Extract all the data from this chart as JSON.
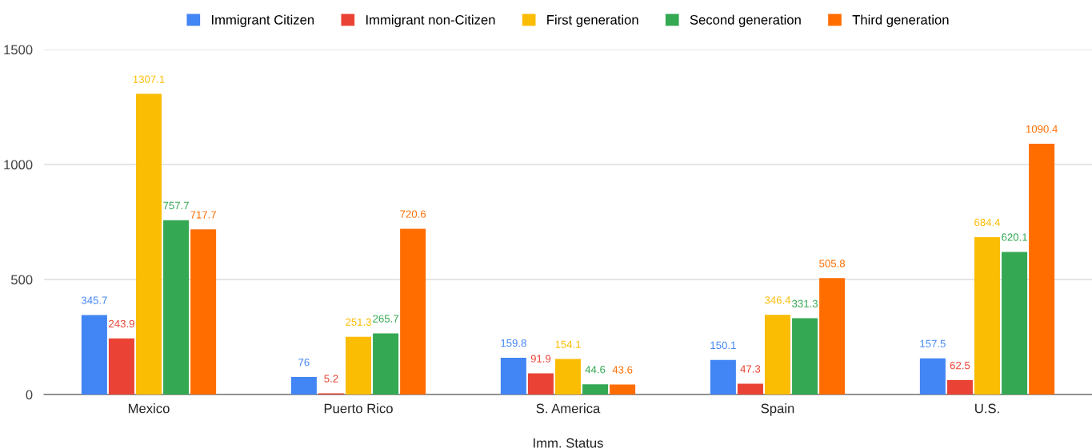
{
  "chart_data": {
    "type": "bar",
    "xlabel": "Imm. Status",
    "categories": [
      "Mexico",
      "Puerto Rico",
      "S. America",
      "Spain",
      "U.S."
    ],
    "series": [
      {
        "name": "Immigrant Citizen",
        "color": "#4285f4",
        "values": [
          345.7,
          76,
          159.8,
          150.1,
          157.5
        ]
      },
      {
        "name": "Immigrant non-Citizen",
        "color": "#ea4335",
        "values": [
          243.9,
          5.2,
          91.9,
          47.3,
          62.5
        ]
      },
      {
        "name": "First generation",
        "color": "#fbbc04",
        "values": [
          1307.1,
          251.3,
          154.1,
          346.4,
          684.4
        ]
      },
      {
        "name": "Second generation",
        "color": "#34a853",
        "values": [
          757.7,
          265.7,
          44.6,
          331.3,
          620.1
        ]
      },
      {
        "name": "Third generation",
        "color": "#ff6d01",
        "values": [
          717.7,
          720.6,
          43.6,
          505.8,
          1090.4
        ]
      }
    ],
    "ylim": [
      0,
      1500
    ],
    "yticks": [
      0,
      500,
      1000,
      1500
    ],
    "grid": "y",
    "legend": "top",
    "data_labels": true
  }
}
